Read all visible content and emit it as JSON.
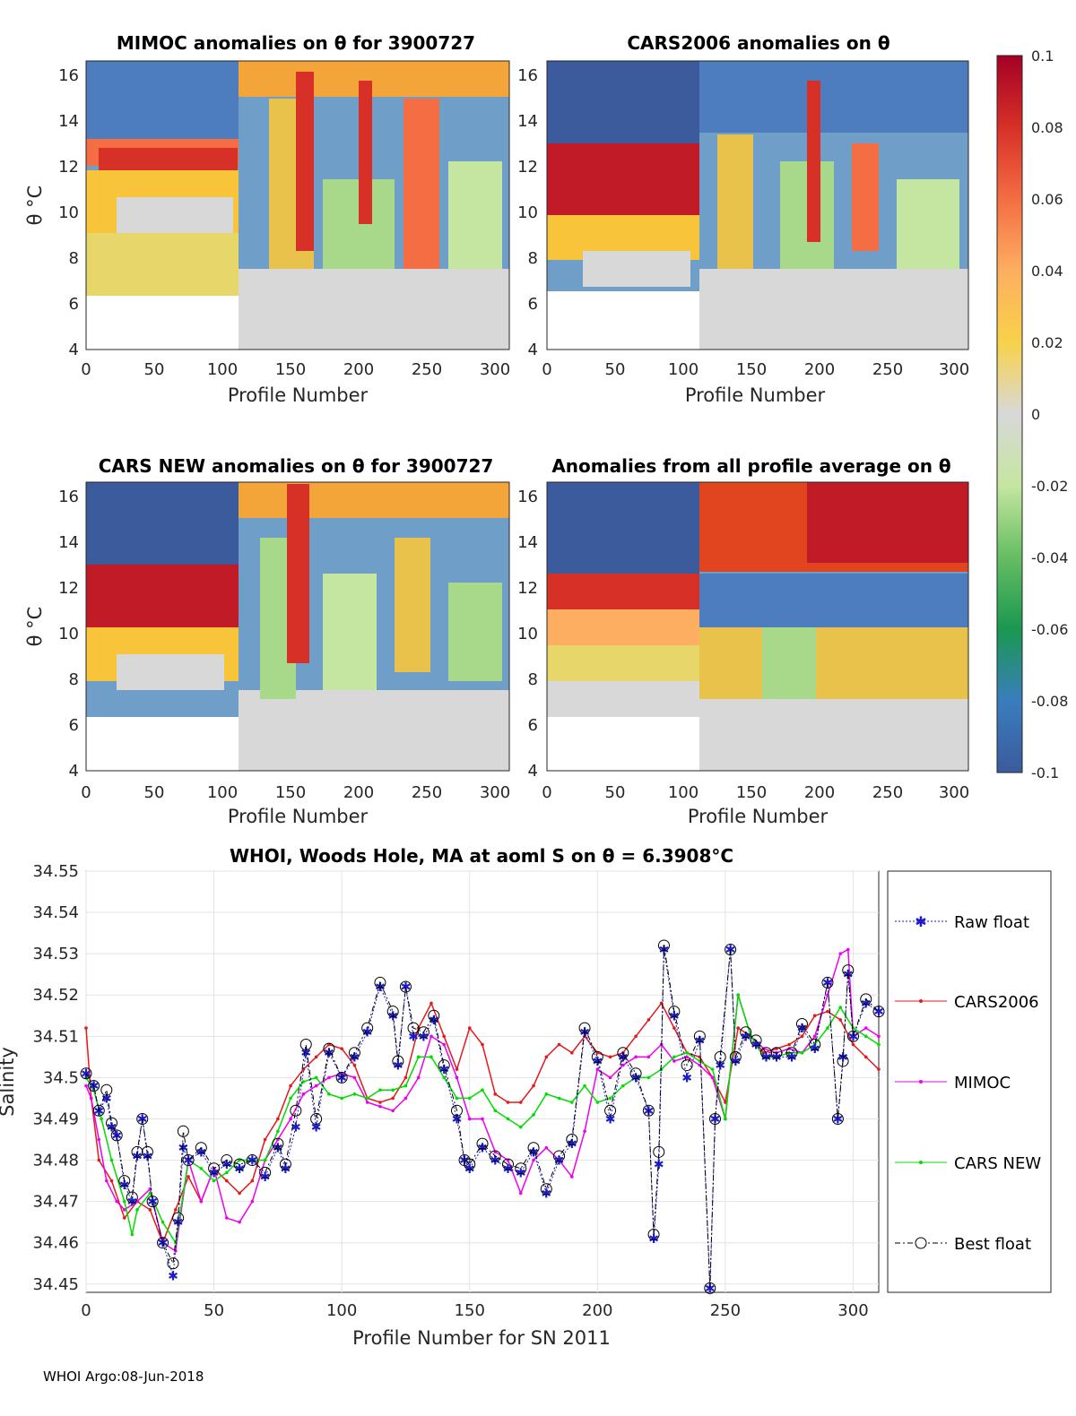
{
  "footer": "WHOI Argo:08-Jun-2018",
  "panels": {
    "tl": {
      "title": "MIMOC anomalies on θ  for 3900727",
      "xlabel": "Profile Number",
      "ylabel": "θ °C",
      "xticks": [
        "0",
        "50",
        "100",
        "150",
        "200",
        "250",
        "300"
      ],
      "yticks": [
        "4",
        "6",
        "8",
        "10",
        "12",
        "14",
        "16"
      ]
    },
    "tr": {
      "title": "CARS2006 anomalies on θ",
      "xlabel": "Profile Number",
      "xticks": [
        "0",
        "50",
        "100",
        "150",
        "200",
        "250",
        "300"
      ],
      "yticks": [
        "4",
        "6",
        "8",
        "10",
        "12",
        "14",
        "16"
      ]
    },
    "bl": {
      "title": "CARS NEW anomalies on θ for 3900727",
      "xlabel": "Profile Number",
      "ylabel": "θ °C",
      "xticks": [
        "0",
        "50",
        "100",
        "150",
        "200",
        "250",
        "300"
      ],
      "yticks": [
        "4",
        "6",
        "8",
        "10",
        "12",
        "14",
        "16"
      ]
    },
    "br": {
      "title": "Anomalies from all profile average on θ",
      "xlabel": "Profile Number",
      "xticks": [
        "0",
        "50",
        "100",
        "150",
        "200",
        "250",
        "300"
      ],
      "yticks": [
        "4",
        "6",
        "8",
        "10",
        "12",
        "14",
        "16"
      ]
    }
  },
  "colorbar": {
    "ticks": [
      "0.1",
      "0.08",
      "0.06",
      "0.04",
      "0.02",
      "0",
      "-0.02",
      "-0.04",
      "-0.06",
      "-0.08",
      "-0.1"
    ],
    "colors": [
      "#a50026",
      "#d73027",
      "#f46d43",
      "#fdae61",
      "#f8d24a",
      "#d8d8d8",
      "#c5e6a0",
      "#66bd63",
      "#1a9850",
      "#3a7dbd",
      "#3b5b9c"
    ]
  },
  "chart_data": {
    "type": "line",
    "title": "WHOI, Woods Hole, MA at aoml S on θ = 6.3908°C",
    "xlabel": "Profile Number for SN 2011",
    "ylabel": "Salinity",
    "xlim": [
      0,
      310
    ],
    "ylim": [
      34.448,
      34.55
    ],
    "xticks": [
      "0",
      "50",
      "100",
      "150",
      "200",
      "250",
      "300"
    ],
    "yticks": [
      "34.45",
      "34.46",
      "34.47",
      "34.48",
      "34.49",
      "34.5",
      "34.51",
      "34.52",
      "34.53",
      "34.54",
      "34.55"
    ],
    "legend": [
      "Raw float",
      "CARS2006",
      "MIMOC",
      "CARS NEW",
      "Best float"
    ],
    "series": [
      {
        "name": "Raw float",
        "color": "#1a1acc",
        "x": [
          0,
          3,
          5,
          8,
          10,
          12,
          15,
          18,
          20,
          22,
          24,
          26,
          30,
          34,
          36,
          38,
          40,
          45,
          50,
          55,
          60,
          65,
          70,
          75,
          78,
          82,
          86,
          90,
          95,
          100,
          105,
          110,
          115,
          120,
          122,
          125,
          128,
          132,
          136,
          140,
          145,
          148,
          150,
          155,
          160,
          165,
          170,
          175,
          180,
          185,
          190,
          195,
          200,
          205,
          210,
          215,
          220,
          222,
          224,
          226,
          230,
          235,
          240,
          244,
          246,
          248,
          252,
          254,
          258,
          262,
          266,
          270,
          276,
          280,
          285,
          290,
          294,
          296,
          298,
          300,
          305,
          310
        ],
        "y": [
          34.501,
          34.498,
          34.492,
          34.495,
          34.488,
          34.486,
          34.474,
          34.47,
          34.481,
          34.49,
          34.481,
          34.47,
          34.46,
          34.452,
          34.465,
          34.483,
          34.48,
          34.482,
          34.477,
          34.479,
          34.478,
          34.48,
          34.476,
          34.483,
          34.478,
          34.488,
          34.506,
          34.488,
          34.506,
          34.5,
          34.505,
          34.511,
          34.522,
          34.515,
          34.503,
          34.522,
          34.51,
          34.51,
          34.514,
          34.502,
          34.49,
          34.48,
          34.478,
          34.483,
          34.48,
          34.478,
          34.477,
          34.482,
          34.472,
          34.48,
          34.484,
          34.511,
          34.504,
          34.49,
          34.505,
          34.5,
          34.492,
          34.461,
          34.479,
          34.531,
          34.515,
          34.5,
          34.509,
          34.449,
          34.49,
          34.503,
          34.531,
          34.504,
          34.51,
          34.508,
          34.505,
          34.505,
          34.505,
          34.512,
          34.507,
          34.523,
          34.49,
          34.505,
          34.525,
          34.51,
          34.518,
          34.516
        ]
      },
      {
        "name": "CARS2006",
        "color": "#e41a1c",
        "x": [
          0,
          2,
          5,
          10,
          15,
          20,
          25,
          30,
          35,
          40,
          45,
          50,
          55,
          60,
          65,
          70,
          75,
          80,
          85,
          90,
          95,
          100,
          105,
          110,
          115,
          120,
          125,
          130,
          135,
          140,
          145,
          150,
          155,
          160,
          165,
          170,
          175,
          180,
          185,
          190,
          195,
          200,
          205,
          210,
          215,
          220,
          225,
          230,
          235,
          240,
          245,
          250,
          255,
          260,
          265,
          270,
          275,
          280,
          285,
          290,
          295,
          300,
          305,
          310
        ],
        "y": [
          34.512,
          34.495,
          34.48,
          34.475,
          34.466,
          34.47,
          34.468,
          34.46,
          34.468,
          34.476,
          34.47,
          34.478,
          34.475,
          34.472,
          34.475,
          34.485,
          34.49,
          34.498,
          34.502,
          34.505,
          34.508,
          34.507,
          34.503,
          34.495,
          34.494,
          34.495,
          34.5,
          34.512,
          34.518,
          34.51,
          34.502,
          34.512,
          34.508,
          34.496,
          34.494,
          34.494,
          34.498,
          34.505,
          34.508,
          34.506,
          34.51,
          34.506,
          34.505,
          34.506,
          34.51,
          34.514,
          34.518,
          34.512,
          34.506,
          34.505,
          34.5,
          34.494,
          34.512,
          34.51,
          34.506,
          34.507,
          34.508,
          34.51,
          34.515,
          34.516,
          34.514,
          34.508,
          34.505,
          34.502
        ]
      },
      {
        "name": "MIMOC",
        "color": "#ee00ee",
        "x": [
          0,
          2,
          5,
          8,
          12,
          15,
          20,
          25,
          30,
          35,
          40,
          45,
          50,
          55,
          60,
          65,
          70,
          75,
          80,
          85,
          90,
          95,
          100,
          105,
          110,
          115,
          120,
          125,
          130,
          135,
          140,
          145,
          150,
          155,
          160,
          165,
          170,
          175,
          180,
          185,
          190,
          195,
          200,
          205,
          210,
          215,
          220,
          225,
          230,
          235,
          240,
          245,
          250,
          255,
          260,
          265,
          270,
          275,
          280,
          285,
          290,
          295,
          298,
          300,
          305,
          310
        ],
        "y": [
          34.498,
          34.495,
          34.485,
          34.475,
          34.47,
          34.468,
          34.47,
          34.473,
          34.46,
          34.458,
          34.48,
          34.47,
          34.478,
          34.466,
          34.465,
          34.47,
          34.48,
          34.485,
          34.49,
          34.496,
          34.498,
          34.5,
          34.501,
          34.5,
          34.494,
          34.493,
          34.492,
          34.495,
          34.5,
          34.51,
          34.508,
          34.5,
          34.49,
          34.49,
          34.482,
          34.48,
          34.472,
          34.48,
          34.483,
          34.48,
          34.476,
          34.487,
          34.502,
          34.5,
          34.503,
          34.505,
          34.505,
          34.508,
          34.504,
          34.505,
          34.503,
          34.5,
          34.49,
          34.52,
          34.51,
          34.507,
          34.506,
          34.507,
          34.506,
          34.51,
          34.52,
          34.53,
          34.531,
          34.51,
          34.512,
          34.51
        ]
      },
      {
        "name": "CARS NEW",
        "color": "#00dd00",
        "x": [
          0,
          3,
          6,
          10,
          15,
          18,
          20,
          25,
          30,
          35,
          40,
          45,
          50,
          55,
          60,
          65,
          70,
          75,
          80,
          85,
          90,
          95,
          100,
          105,
          110,
          115,
          120,
          125,
          130,
          135,
          140,
          145,
          150,
          155,
          160,
          165,
          170,
          175,
          180,
          185,
          190,
          195,
          200,
          205,
          210,
          215,
          220,
          225,
          230,
          235,
          240,
          245,
          250,
          255,
          260,
          265,
          270,
          275,
          280,
          285,
          290,
          295,
          300,
          305,
          310
        ],
        "y": [
          34.5,
          34.497,
          34.49,
          34.48,
          34.47,
          34.462,
          34.468,
          34.472,
          34.465,
          34.46,
          34.48,
          34.478,
          34.475,
          34.477,
          34.48,
          34.48,
          34.48,
          34.487,
          34.495,
          34.499,
          34.5,
          34.496,
          34.495,
          34.496,
          34.495,
          34.497,
          34.497,
          34.498,
          34.505,
          34.505,
          34.5,
          34.495,
          34.495,
          34.497,
          34.492,
          34.49,
          34.488,
          34.491,
          34.496,
          34.495,
          34.494,
          34.498,
          34.494,
          34.495,
          34.498,
          34.5,
          34.5,
          34.502,
          34.505,
          34.506,
          34.504,
          34.502,
          34.49,
          34.52,
          34.51,
          34.505,
          34.505,
          34.506,
          34.506,
          34.508,
          34.512,
          34.517,
          34.512,
          34.51,
          34.508
        ]
      },
      {
        "name": "Best float",
        "color": "#000000",
        "x": [
          0,
          3,
          5,
          8,
          10,
          12,
          15,
          18,
          20,
          22,
          24,
          26,
          30,
          34,
          36,
          38,
          40,
          45,
          50,
          55,
          60,
          65,
          70,
          75,
          78,
          82,
          86,
          90,
          95,
          100,
          105,
          110,
          115,
          120,
          122,
          125,
          128,
          132,
          136,
          140,
          145,
          148,
          150,
          155,
          160,
          165,
          170,
          175,
          180,
          185,
          190,
          195,
          200,
          205,
          210,
          215,
          220,
          222,
          224,
          226,
          230,
          235,
          240,
          244,
          246,
          248,
          252,
          254,
          258,
          262,
          266,
          270,
          276,
          280,
          285,
          290,
          294,
          296,
          298,
          300,
          305,
          310
        ],
        "y": [
          34.501,
          34.498,
          34.492,
          34.497,
          34.489,
          34.486,
          34.475,
          34.471,
          34.482,
          34.49,
          34.482,
          34.47,
          34.46,
          34.455,
          34.466,
          34.487,
          34.48,
          34.483,
          34.478,
          34.48,
          34.479,
          34.48,
          34.477,
          34.484,
          34.479,
          34.492,
          34.508,
          34.49,
          34.507,
          34.5,
          34.506,
          34.512,
          34.523,
          34.516,
          34.504,
          34.522,
          34.512,
          34.511,
          34.515,
          34.503,
          34.492,
          34.48,
          34.479,
          34.484,
          34.481,
          34.479,
          34.478,
          34.483,
          34.473,
          34.481,
          34.485,
          34.512,
          34.505,
          34.492,
          34.506,
          34.501,
          34.492,
          34.462,
          34.482,
          34.532,
          34.516,
          34.503,
          34.51,
          34.449,
          34.49,
          34.505,
          34.531,
          34.505,
          34.511,
          34.509,
          34.506,
          34.506,
          34.506,
          34.513,
          34.508,
          34.523,
          34.49,
          34.504,
          34.526,
          34.51,
          34.519,
          34.516
        ]
      }
    ]
  }
}
